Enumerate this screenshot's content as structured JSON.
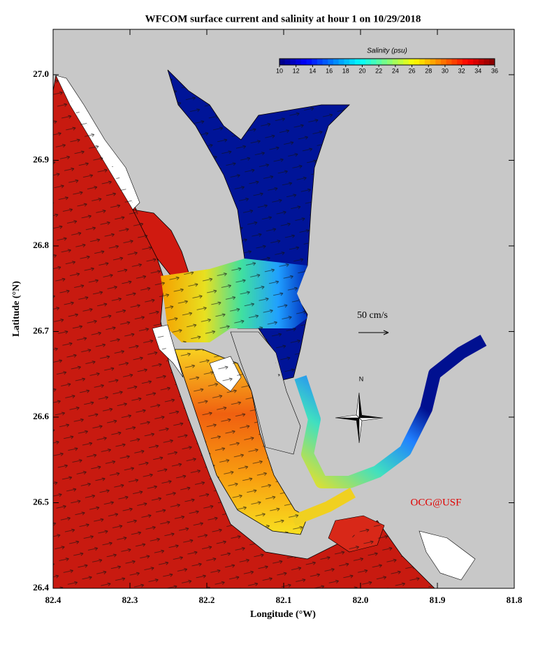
{
  "title": "WFCOM surface current and salinity at hour 1 on 10/29/2018",
  "xaxis": {
    "label": "Longitude (°W)",
    "lim": [
      82.4,
      81.8
    ],
    "ticks": [
      82.4,
      82.3,
      82.2,
      82.1,
      {
        "value": 82,
        "label": "82.0"
      },
      81.9,
      81.8
    ]
  },
  "yaxis": {
    "label": "Latitude (°N)",
    "lim": [
      26.4,
      27.053
    ],
    "ticks": [
      26.4,
      26.5,
      26.6,
      26.7,
      26.8,
      26.9,
      {
        "value": 27,
        "label": "27.0"
      }
    ]
  },
  "colorbar": {
    "title": "Salinity (psu)",
    "lim": [
      10,
      36
    ],
    "ticks": [
      10,
      12,
      14,
      16,
      18,
      20,
      22,
      24,
      26,
      28,
      30,
      32,
      34,
      36
    ]
  },
  "scale_label": "50 cm/s",
  "north_label": "N",
  "credit": "OCG@USF"
}
